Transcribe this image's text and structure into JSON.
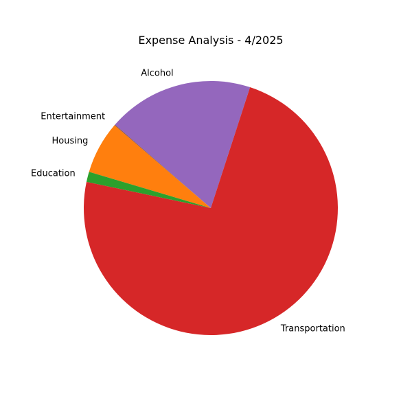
{
  "chart_data": {
    "type": "pie",
    "title": "Expense Analysis - 4/2025",
    "categories": [
      "Alcohol",
      "Entertainment",
      "Housing",
      "Education",
      "Transportation"
    ],
    "values": [
      18.6,
      0.1,
      6.7,
      1.3,
      73.3
    ],
    "colors": [
      "#9467bd",
      "#8c564b",
      "#ff7f0e",
      "#2ca02c",
      "#d62728"
    ],
    "start_angle_deg": 72,
    "direction": "counterclockwise"
  }
}
